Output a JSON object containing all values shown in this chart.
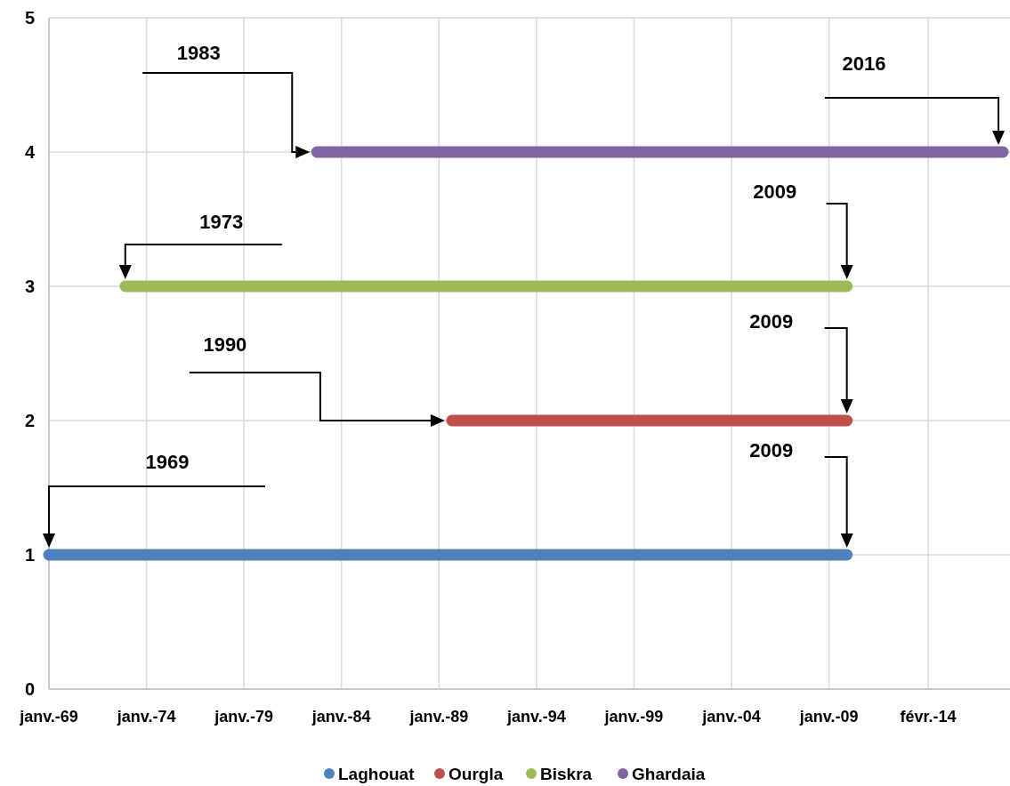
{
  "chart_data": {
    "type": "line",
    "xlim": [
      "1969-01-01",
      "2017-12-01"
    ],
    "xticks": [
      {
        "value": "1969-01-01",
        "label": "janv.-69"
      },
      {
        "value": "1974-01-01",
        "label": "janv.-74"
      },
      {
        "value": "1979-01-01",
        "label": "janv.-79"
      },
      {
        "value": "1984-01-01",
        "label": "janv.-84"
      },
      {
        "value": "1989-01-01",
        "label": "janv.-89"
      },
      {
        "value": "1994-01-01",
        "label": "janv.-94"
      },
      {
        "value": "1999-01-01",
        "label": "janv.-99"
      },
      {
        "value": "2004-01-01",
        "label": "janv.-04"
      },
      {
        "value": "2009-01-01",
        "label": "janv.-09"
      },
      {
        "value": "2014-02-01",
        "label": "févr.-14"
      }
    ],
    "ylim": [
      0,
      5
    ],
    "yticks": [
      0,
      1,
      2,
      3,
      4,
      5
    ],
    "grid": true,
    "legend": "bottom",
    "series": [
      {
        "name": "Laghouat",
        "color": "#4f81bd",
        "x": [
          "1969-01",
          "2009-12"
        ],
        "values": [
          1,
          1
        ]
      },
      {
        "name": "Ourgla",
        "color": "#c0504d",
        "x": [
          "1989-09",
          "2009-12"
        ],
        "values": [
          2,
          2
        ]
      },
      {
        "name": "Biskra",
        "color": "#9bbb59",
        "x": [
          "1972-12",
          "2009-12"
        ],
        "values": [
          3,
          3
        ]
      },
      {
        "name": "Ghardaia",
        "color": "#8064a2",
        "x": [
          "1982-10",
          "2017-12"
        ],
        "values": [
          4,
          4
        ]
      }
    ],
    "annotations": [
      "1983",
      "2016",
      "1973",
      "2009",
      "1990",
      "2009",
      "1969",
      "2009"
    ]
  }
}
